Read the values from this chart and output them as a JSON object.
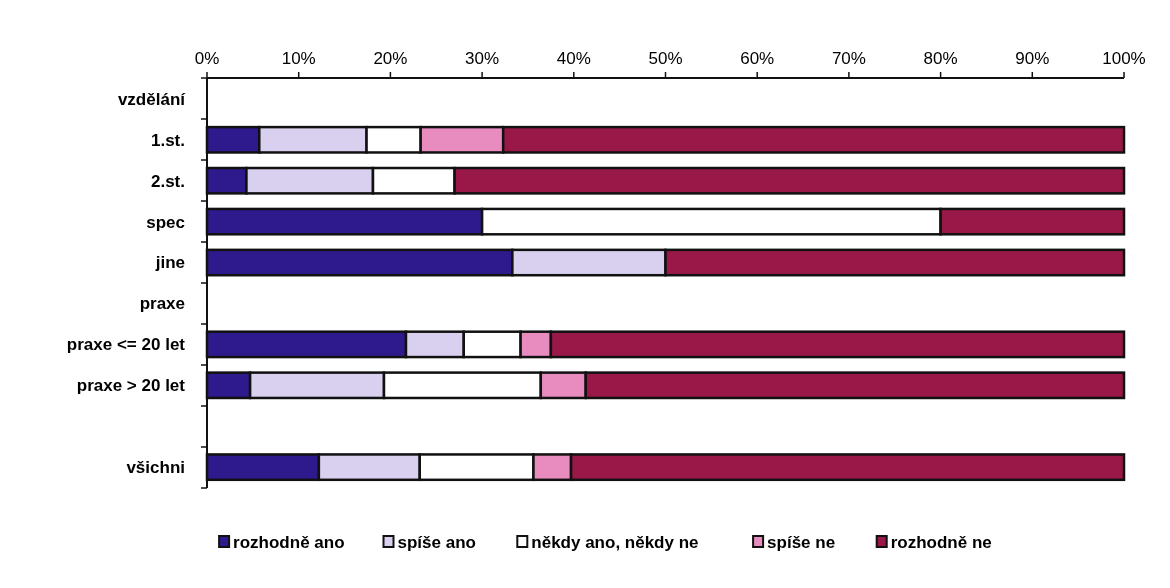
{
  "chart_data": {
    "type": "bar",
    "orientation": "horizontal",
    "stacked": true,
    "categories": [
      "vzdělání",
      "1.st.",
      "2.st.",
      "spec",
      "jine",
      "praxe",
      "praxe <= 20 let",
      "praxe > 20 let",
      null,
      "všichni"
    ],
    "series": [
      {
        "name": "rozhodně ano",
        "color": "#2e1a8c",
        "values": [
          null,
          5.7,
          4.3,
          30,
          33.3,
          null,
          21.7,
          4.7,
          null,
          12.2
        ]
      },
      {
        "name": "spíše ano",
        "color": "#d8d0ee",
        "values": [
          null,
          11.7,
          13.8,
          0,
          16.7,
          null,
          6.3,
          14.6,
          null,
          11.0
        ]
      },
      {
        "name": "někdy ano, někdy ne",
        "color": "#ffffff",
        "values": [
          null,
          5.9,
          8.9,
          50,
          0,
          null,
          6.2,
          17.1,
          null,
          12.4
        ]
      },
      {
        "name": "spíše ne",
        "color": "#e88cc0",
        "values": [
          null,
          9.0,
          0,
          0,
          0,
          null,
          3.3,
          4.9,
          null,
          4.1
        ]
      },
      {
        "name": "rozhodně ne",
        "color": "#9a1848",
        "values": [
          null,
          67.7,
          73.0,
          20,
          50,
          null,
          62.5,
          58.7,
          null,
          60.3
        ]
      }
    ],
    "xlim": [
      0,
      100
    ],
    "xticks": [
      {
        "value": 0,
        "label": "0%"
      },
      {
        "value": 10,
        "label": "10%"
      },
      {
        "value": 20,
        "label": "20%"
      },
      {
        "value": 30,
        "label": "30%"
      },
      {
        "value": 40,
        "label": "40%"
      },
      {
        "value": 50,
        "label": "50%"
      },
      {
        "value": 60,
        "label": "60%"
      },
      {
        "value": 70,
        "label": "70%"
      },
      {
        "value": 80,
        "label": "80%"
      },
      {
        "value": 90,
        "label": "90%"
      },
      {
        "value": 100,
        "label": "100%"
      }
    ],
    "grid": false,
    "legend": "bottom"
  }
}
